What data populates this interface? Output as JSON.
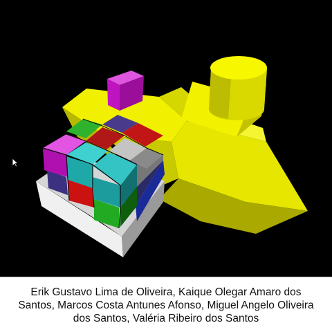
{
  "credits": {
    "text": "Erik Gustavo Lima de Oliveira, Kaique Olegar Amaro dos Santos, Marcos Costa Antunes Afonso, Miguel Angelo Oliveira dos Santos, Valéria Ribeiro dos Santos"
  },
  "colors": {
    "background": "#000000",
    "machine": "#e6e600",
    "tray": "#d0d0d0",
    "magenta": "#cc22cc",
    "cyan": "#22bbbb",
    "red": "#cc1111",
    "green": "#22aa22",
    "gray": "#bbbbbb",
    "purple": "#44337a",
    "blue": "#1a2a99"
  },
  "icons": {
    "cursor": "mouse-pointer-icon"
  }
}
